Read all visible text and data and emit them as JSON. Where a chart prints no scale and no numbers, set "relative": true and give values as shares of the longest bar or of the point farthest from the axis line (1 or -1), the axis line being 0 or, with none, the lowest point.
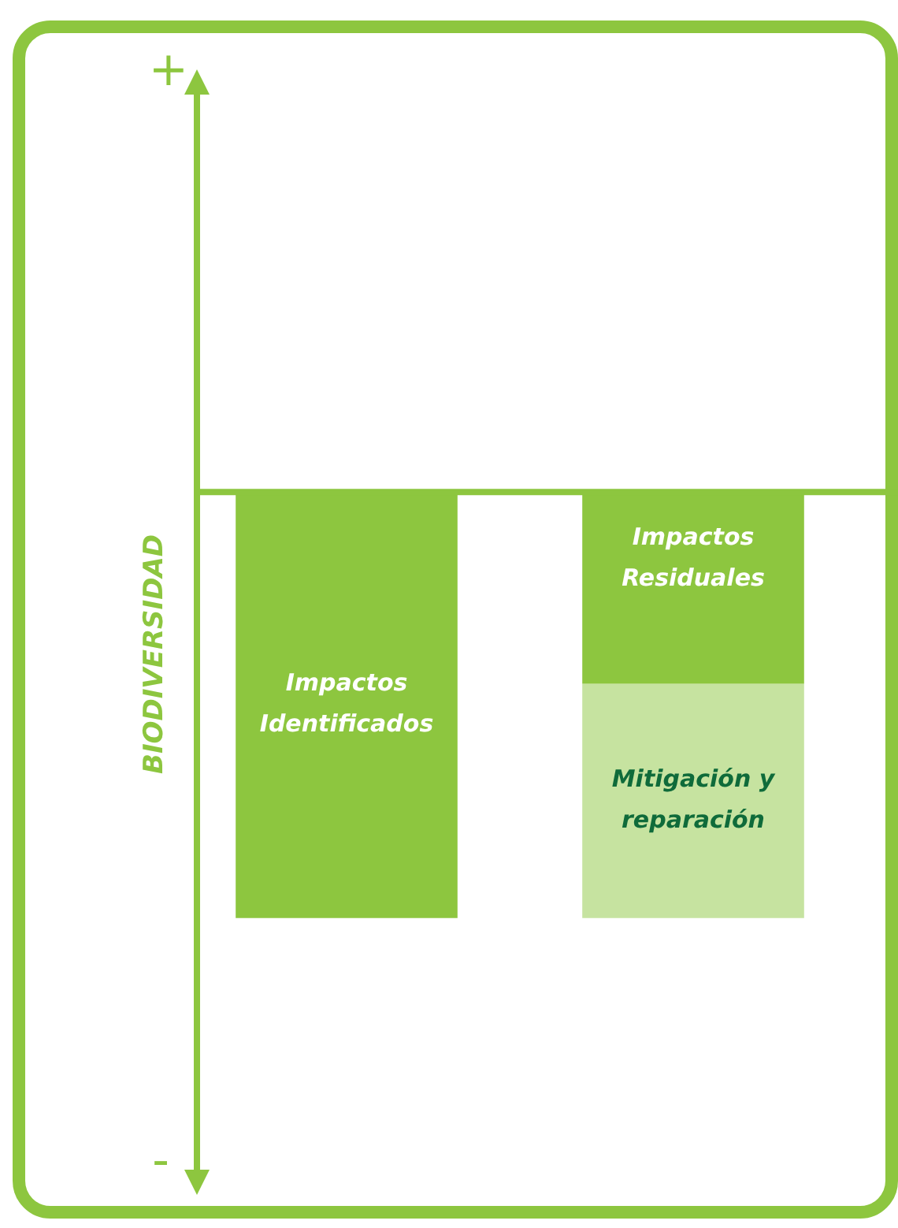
{
  "chart_data": {
    "type": "bar",
    "relative": true,
    "stacked": true,
    "ylabel": "BIODIVERSIDAD",
    "categories": [
      null,
      null
    ],
    "legend": false,
    "series": [
      {
        "name": "Impactos Identificados",
        "color": "#8dc63f",
        "values": [
          -1,
          null
        ]
      },
      {
        "name": "Impactos Residuales",
        "color": "#8dc63f",
        "values": [
          null,
          -0.45
        ]
      },
      {
        "name": "Mitigación y reparación",
        "color": "#c6e3a0",
        "values": [
          null,
          -0.55
        ]
      }
    ],
    "annotations": [
      "+",
      "-"
    ]
  }
}
